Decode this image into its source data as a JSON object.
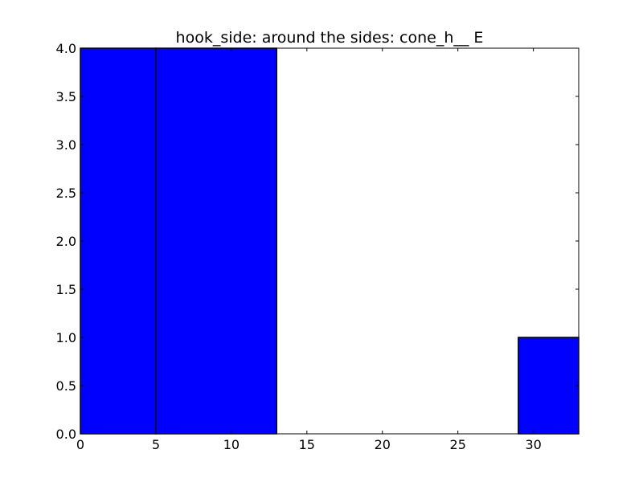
{
  "chart_data": {
    "type": "bar",
    "title": "hook_side: around the sides: cone_h__ E",
    "xlabel": "",
    "ylabel": "",
    "xlim": [
      0,
      33
    ],
    "ylim": [
      0,
      4.0
    ],
    "x_ticks": [
      0,
      5,
      10,
      15,
      20,
      25,
      30
    ],
    "x_tick_labels": [
      "0",
      "5",
      "10",
      "15",
      "20",
      "25",
      "30"
    ],
    "y_ticks": [
      0.0,
      0.5,
      1.0,
      1.5,
      2.0,
      2.5,
      3.0,
      3.5,
      4.0
    ],
    "y_tick_labels": [
      "0.0",
      "0.5",
      "1.0",
      "1.5",
      "2.0",
      "2.5",
      "3.0",
      "3.5",
      "4.0"
    ],
    "bins": [
      {
        "x_start": 0,
        "x_end": 5,
        "value": 4
      },
      {
        "x_start": 5,
        "x_end": 13,
        "value": 4
      },
      {
        "x_start": 29,
        "x_end": 33,
        "value": 1
      }
    ],
    "bar_color": "#0000ff",
    "edge_color": "#000000",
    "grid": false,
    "legend": "none"
  }
}
